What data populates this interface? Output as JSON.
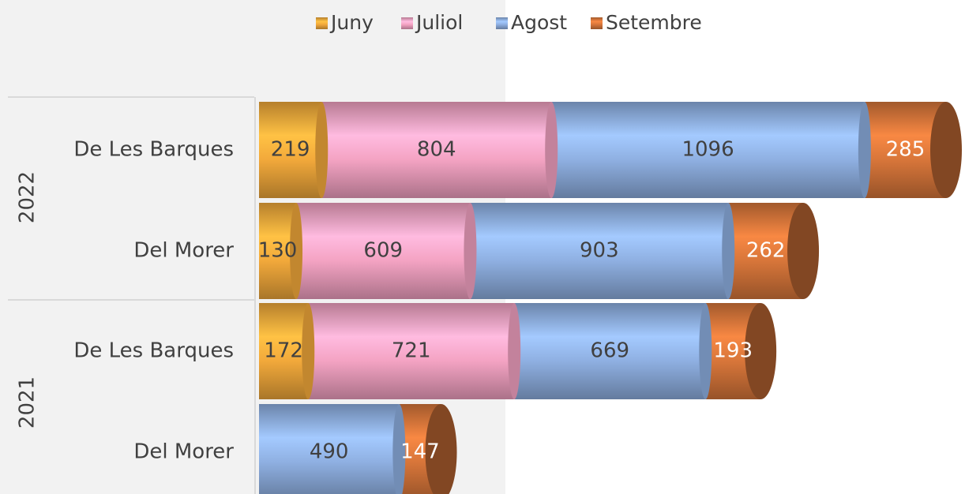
{
  "chart_data": {
    "type": "stacked-bar-horizontal",
    "groups": [
      {
        "name": "2022",
        "categories": [
          "De Les Barques",
          "Del Morer"
        ]
      },
      {
        "name": "2021",
        "categories": [
          "De Les Barques",
          "Del Morer"
        ]
      }
    ],
    "series": [
      {
        "name": "Juny",
        "color": "#f2a93b",
        "values": [
          219,
          130,
          172,
          null
        ]
      },
      {
        "name": "Juliol",
        "color": "#f4a3c3",
        "values": [
          804,
          609,
          721,
          null
        ]
      },
      {
        "name": "Agost",
        "color": "#8fb0e2",
        "values": [
          1096,
          903,
          669,
          490
        ]
      },
      {
        "name": "Setembre",
        "color": "#d8763a",
        "values": [
          285,
          262,
          193,
          147
        ]
      }
    ],
    "legend": "top"
  }
}
